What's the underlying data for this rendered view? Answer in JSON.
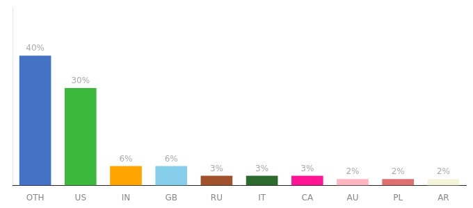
{
  "chart_data": {
    "type": "bar",
    "categories": [
      "OTH",
      "US",
      "IN",
      "GB",
      "RU",
      "IT",
      "CA",
      "AU",
      "PL",
      "AR"
    ],
    "values": [
      40,
      30,
      6,
      6,
      3,
      3,
      3,
      2,
      2,
      2
    ],
    "value_labels": [
      "40%",
      "30%",
      "6%",
      "6%",
      "3%",
      "3%",
      "3%",
      "2%",
      "2%",
      "2%"
    ],
    "colors": [
      "#4472C4",
      "#3CB83C",
      "#FFA500",
      "#87CEEB",
      "#A0522D",
      "#2D6A2D",
      "#FF1493",
      "#FFB6C1",
      "#E07070",
      "#F5F5DC"
    ],
    "ylim": [
      0,
      55
    ],
    "data_labels": true,
    "grid": false,
    "tick_labels": "x"
  }
}
